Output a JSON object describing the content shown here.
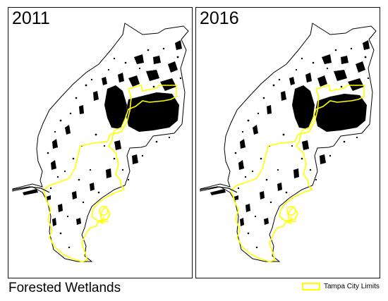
{
  "maps": [
    {
      "year": "2011"
    },
    {
      "year": "2016"
    }
  ],
  "title": "Forested Wetlands",
  "legend": {
    "label": "Tampa City Limits",
    "color": "#ffff00"
  },
  "colors": {
    "land": "#ffffff",
    "wetland": "#000000",
    "outline": "#000000",
    "city_limits": "#ffff00"
  }
}
